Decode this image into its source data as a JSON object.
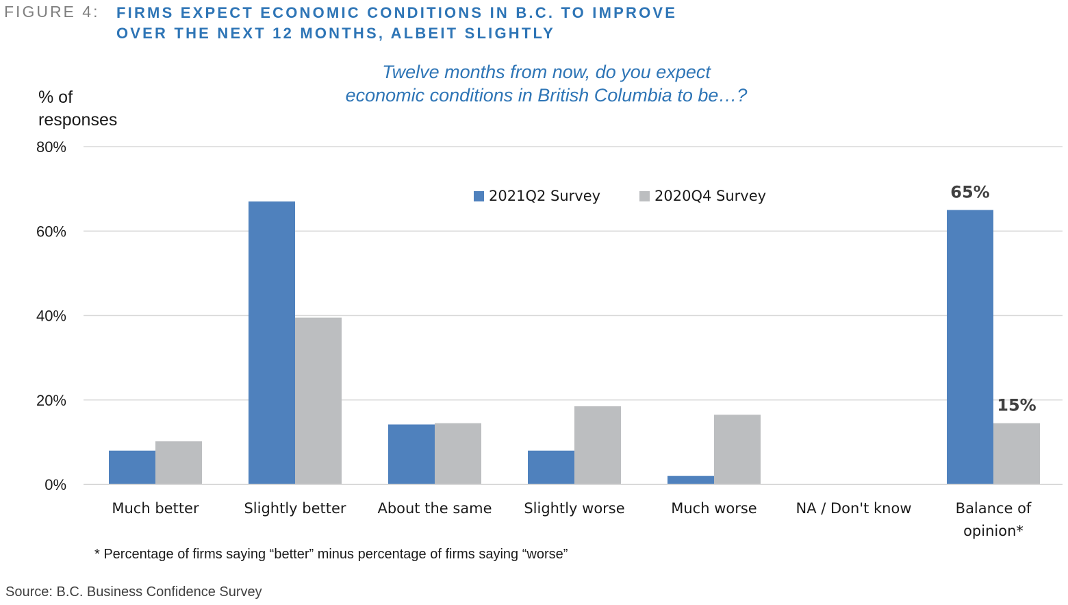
{
  "header": {
    "figure_label": "FIGURE 4:",
    "title_line1": "FIRMS EXPECT ECONOMIC CONDITIONS IN B.C. TO IMPROVE",
    "title_line2": "OVER THE NEXT 12 MONTHS, ALBEIT SLIGHTLY"
  },
  "footnote": "* Percentage of firms saying “better” minus percentage of firms saying “worse”",
  "source": "Source:  B.C. Business Confidence Survey",
  "colors": {
    "series_a": "#4f81bd",
    "series_b": "#bcbec0",
    "title": "#2e75b6",
    "grid": "#d9d9d9"
  },
  "chart_data": {
    "type": "bar",
    "title_line1": "Twelve months from now, do you expect",
    "title_line2": "economic conditions in British Columbia to be…?",
    "ylabel_line1": "% of",
    "ylabel_line2": "responses",
    "ylim": [
      0,
      80
    ],
    "yticks": [
      0,
      20,
      40,
      60,
      80
    ],
    "ytick_labels": [
      "0%",
      "20%",
      "40%",
      "60%",
      "80%"
    ],
    "categories": [
      [
        "Much better"
      ],
      [
        "Slightly better"
      ],
      [
        "About the same"
      ],
      [
        "Slightly worse"
      ],
      [
        "Much worse"
      ],
      [
        "NA / Don't know"
      ],
      [
        "Balance of",
        "opinion*"
      ]
    ],
    "series": [
      {
        "name": "2021Q2 Survey",
        "values": [
          8,
          67,
          14.2,
          8,
          2,
          0,
          65
        ]
      },
      {
        "name": "2020Q4 Survey",
        "values": [
          10.2,
          39.5,
          14.5,
          18.5,
          16.5,
          0,
          14.5
        ]
      }
    ],
    "data_labels": [
      {
        "series": 0,
        "category": 6,
        "text": "65%"
      },
      {
        "series": 1,
        "category": 6,
        "text": "15%"
      }
    ],
    "legend_position": "top-center",
    "grid": true
  }
}
